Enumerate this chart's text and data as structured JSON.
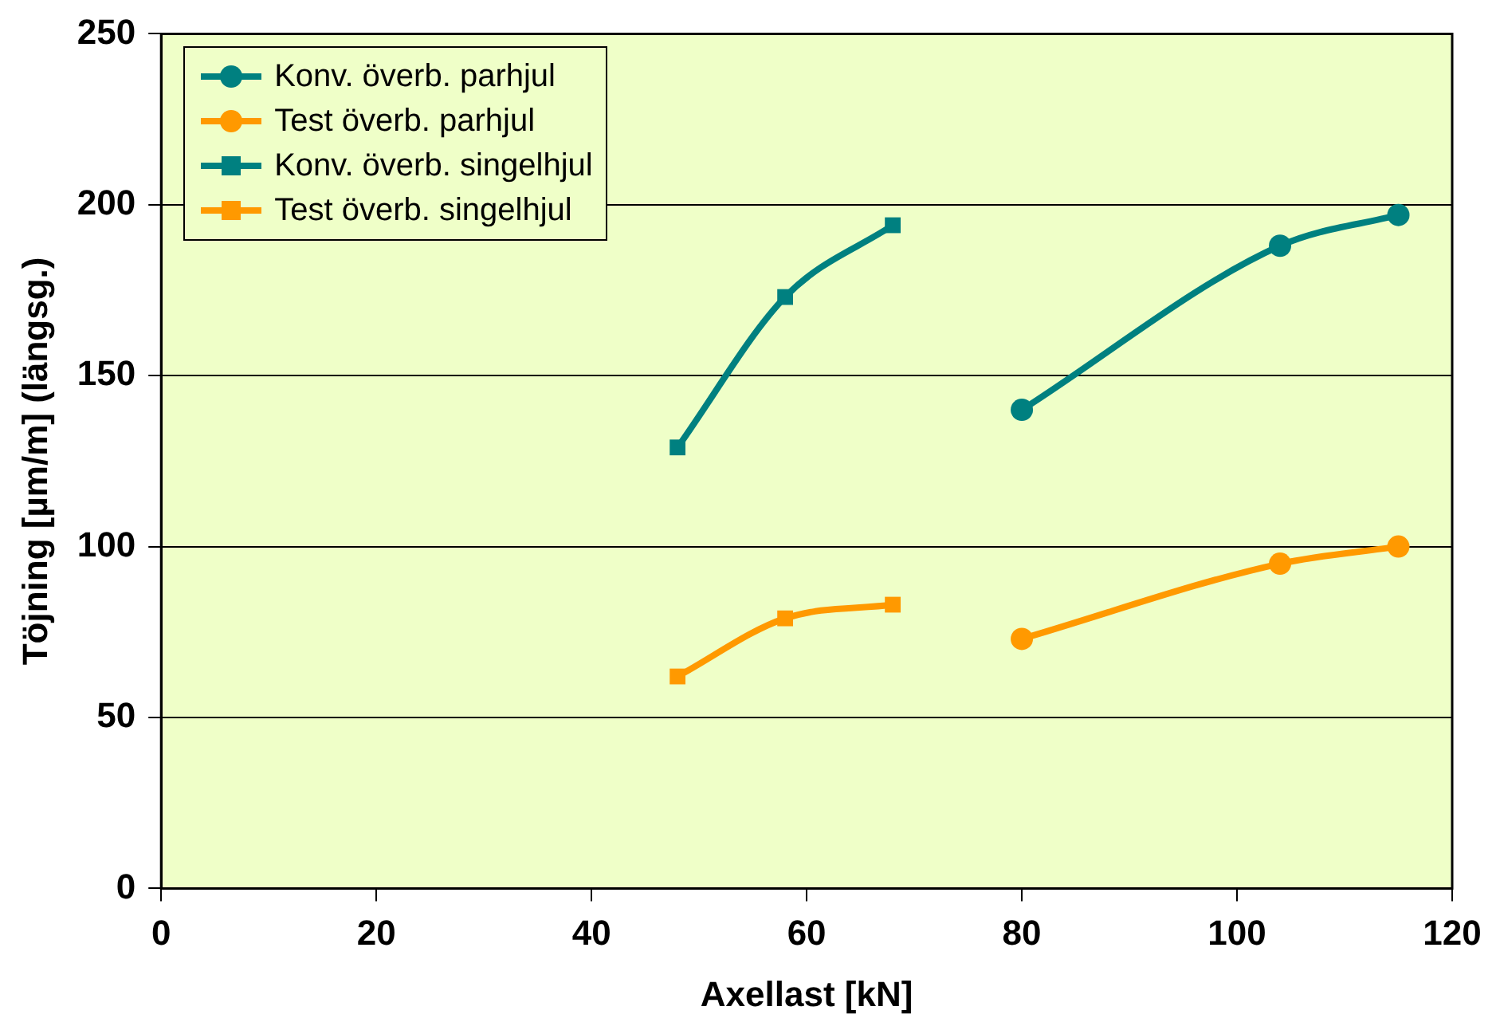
{
  "chart_data": {
    "type": "line",
    "xlabel": "Axellast [kN]",
    "ylabel": "Töjning [µm/m] (längsg.)",
    "xlim": [
      0,
      120
    ],
    "xticks": [
      0,
      20,
      40,
      60,
      80,
      100,
      120
    ],
    "ylim": [
      0,
      250
    ],
    "yticks": [
      0,
      50,
      100,
      150,
      200,
      250
    ],
    "grid": "y",
    "legend": "top left",
    "line_style": "solid",
    "series": [
      {
        "name": "Konv. överb. parhjul",
        "color": "#008080",
        "marker": "circle",
        "x": [
          80,
          104,
          115
        ],
        "values": [
          140,
          188,
          197
        ]
      },
      {
        "name": "Test överb. parhjul",
        "color": "#ff9900",
        "marker": "circle",
        "x": [
          80,
          104,
          115
        ],
        "values": [
          73,
          95,
          100
        ]
      },
      {
        "name": "Konv. överb. singelhjul",
        "color": "#008080",
        "marker": "square",
        "x": [
          48,
          58,
          68
        ],
        "values": [
          129,
          173,
          194
        ]
      },
      {
        "name": "Test överb. singelhjul",
        "color": "#ff9900",
        "marker": "square",
        "x": [
          48,
          58,
          68
        ],
        "values": [
          62,
          79,
          83
        ]
      }
    ]
  }
}
